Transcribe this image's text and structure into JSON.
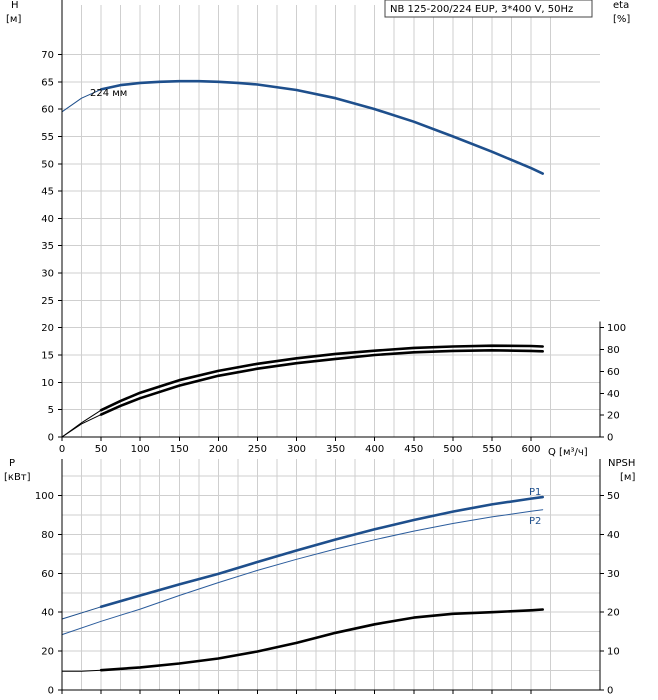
{
  "header": {
    "pump_label": "NB 125-200/224 EUP, 3*400 V, 50Hz"
  },
  "chart_data": [
    {
      "type": "line",
      "name": "head-efficiency",
      "left_axis": {
        "label_line1": "H",
        "label_line2": "[м]",
        "range": [
          0,
          75
        ],
        "ticks": [
          0,
          5,
          10,
          15,
          20,
          25,
          30,
          35,
          40,
          45,
          50,
          55,
          60,
          65,
          70
        ]
      },
      "right_axis": {
        "label_line1": "eta",
        "label_line2": "[%]",
        "range": [
          0,
          100
        ],
        "ticks": [
          0,
          20,
          40,
          60,
          80,
          100
        ]
      },
      "x_axis": {
        "label": "Q [м³/ч]",
        "range": [
          0,
          630
        ],
        "ticks": [
          0,
          50,
          100,
          150,
          200,
          250,
          300,
          350,
          400,
          450,
          500,
          550,
          600
        ]
      },
      "grid": true,
      "series": [
        {
          "name": "224 мм",
          "axis": "left",
          "color": "#1e4f8c",
          "x": [
            0,
            25,
            50,
            75,
            100,
            125,
            150,
            175,
            200,
            225,
            250,
            300,
            350,
            400,
            450,
            500,
            550,
            600,
            615
          ],
          "y": [
            59.5,
            62.0,
            63.6,
            64.4,
            64.8,
            65.0,
            65.1,
            65.1,
            65.0,
            64.8,
            64.5,
            63.5,
            62.0,
            60.0,
            57.7,
            55.0,
            52.2,
            49.2,
            48.2
          ],
          "thick_from": 50
        },
        {
          "name": "eta-upper",
          "axis": "right",
          "color": "#000000",
          "x": [
            0,
            25,
            50,
            75,
            100,
            150,
            200,
            250,
            300,
            350,
            400,
            450,
            500,
            550,
            600,
            615
          ],
          "y": [
            0,
            13,
            24.5,
            33,
            40.5,
            52,
            60.5,
            67,
            72,
            76,
            79,
            81.5,
            82.8,
            83.5,
            83.3,
            82.8
          ],
          "thick_from": 50
        },
        {
          "name": "eta-lower",
          "axis": "right",
          "color": "#000000",
          "x": [
            0,
            25,
            50,
            75,
            100,
            150,
            200,
            250,
            300,
            350,
            400,
            450,
            500,
            550,
            600,
            615
          ],
          "y": [
            0,
            12,
            20.5,
            28.5,
            35.5,
            47,
            56,
            62.5,
            67.5,
            71.5,
            75,
            77.5,
            78.8,
            79.3,
            78.8,
            78.4
          ],
          "thick_from": 50
        }
      ]
    },
    {
      "type": "line",
      "name": "power-npsh",
      "left_axis": {
        "label_line1": "P",
        "label_line2": "[кВт]",
        "range": [
          0,
          110
        ],
        "ticks": [
          0,
          20,
          40,
          60,
          80,
          100
        ]
      },
      "right_axis": {
        "label_line1": "NPSH",
        "label_line2": "[м]",
        "range": [
          0,
          55
        ],
        "ticks": [
          0,
          10,
          20,
          30,
          40,
          50
        ]
      },
      "x_axis": {
        "range": [
          0,
          630
        ],
        "ticks": [
          0,
          50,
          100,
          150,
          200,
          250,
          300,
          350,
          400,
          450,
          500,
          550,
          600
        ]
      },
      "grid": true,
      "series": [
        {
          "name": "P1",
          "axis": "left",
          "color": "#1e4f8c",
          "x": [
            0,
            50,
            100,
            150,
            200,
            250,
            300,
            350,
            400,
            450,
            500,
            550,
            600,
            615
          ],
          "y": [
            36.5,
            42.8,
            48.6,
            54.3,
            59.7,
            65.8,
            71.7,
            77.4,
            82.6,
            87.4,
            91.7,
            95.4,
            98.4,
            99.2
          ],
          "thick_from": 50
        },
        {
          "name": "P2",
          "axis": "left",
          "color": "#2b5c9c",
          "x": [
            0,
            50,
            100,
            150,
            200,
            250,
            300,
            350,
            400,
            450,
            500,
            550,
            600,
            615
          ],
          "y": [
            28.5,
            35.3,
            41.6,
            48.6,
            55.2,
            61.5,
            67.2,
            72.5,
            77.3,
            81.7,
            85.6,
            89.0,
            91.9,
            92.7
          ],
          "thick_from": 9999
        },
        {
          "name": "NPSH",
          "axis": "right",
          "color": "#000000",
          "x": [
            0,
            25,
            50,
            100,
            150,
            200,
            250,
            300,
            350,
            400,
            450,
            500,
            550,
            600,
            615
          ],
          "y": [
            4.8,
            4.8,
            5.1,
            5.8,
            6.8,
            8.1,
            9.9,
            12.1,
            14.7,
            16.9,
            18.6,
            19.6,
            20.0,
            20.5,
            20.7
          ],
          "thick_from": 50
        }
      ]
    }
  ]
}
